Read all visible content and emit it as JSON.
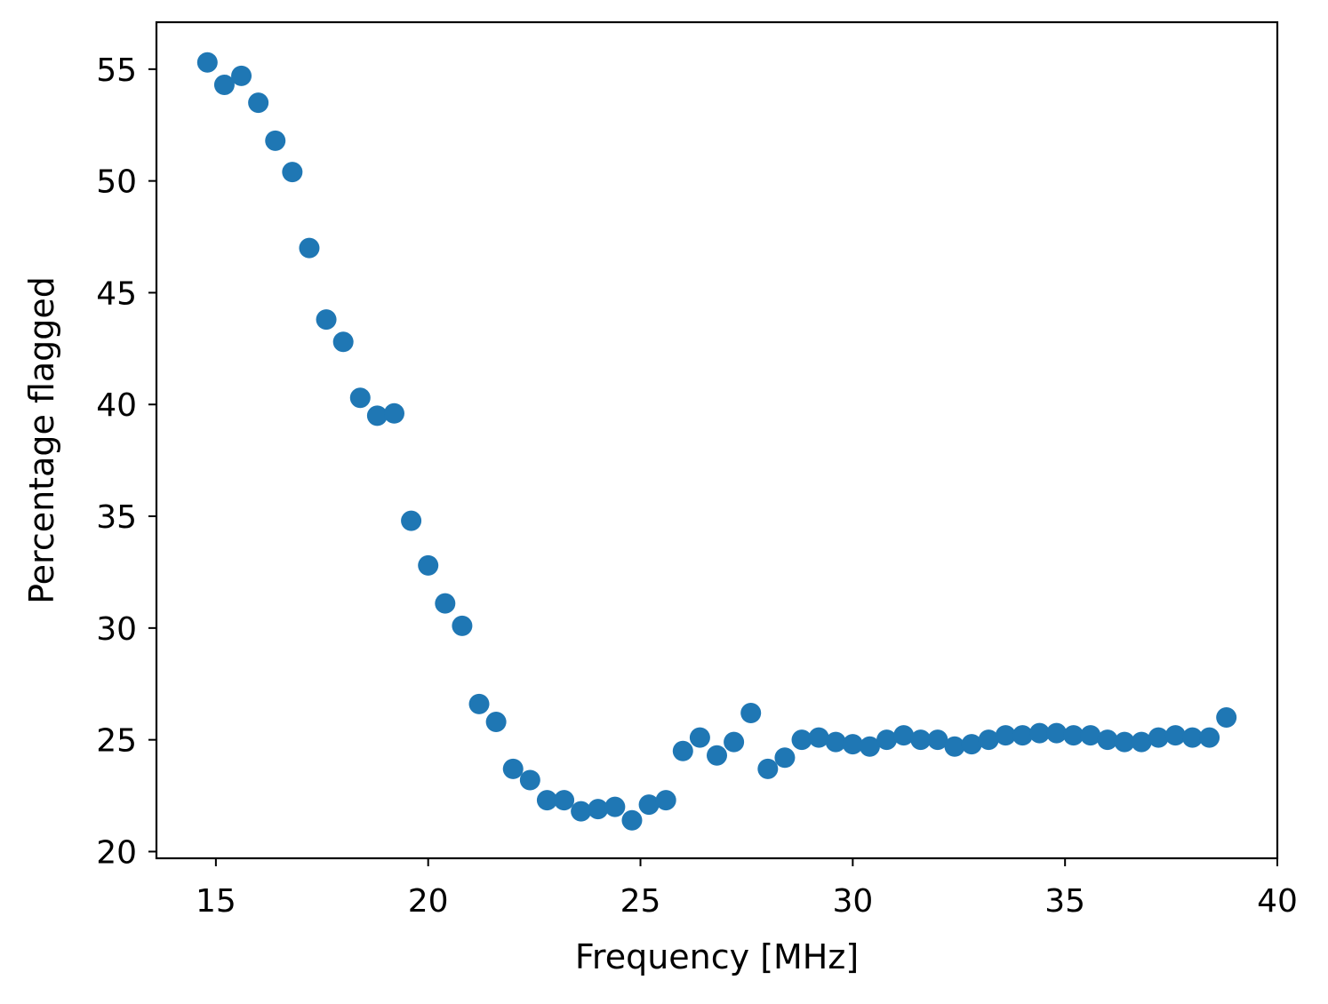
{
  "chart_data": {
    "type": "scatter",
    "title": "",
    "xlabel": "Frequency [MHz]",
    "ylabel": "Percentage flagged",
    "xlim": [
      13.6,
      40
    ],
    "ylim": [
      19.7,
      57.1
    ],
    "xticks": [
      15,
      20,
      25,
      30,
      35,
      40
    ],
    "yticks": [
      20,
      25,
      30,
      35,
      40,
      45,
      50,
      55
    ],
    "xtick_labels": [
      "15",
      "20",
      "25",
      "30",
      "35",
      "40"
    ],
    "ytick_labels": [
      "20",
      "25",
      "30",
      "35",
      "40",
      "45",
      "50",
      "55"
    ],
    "grid": false,
    "legend": false,
    "marker_color": "#1f77b4",
    "series": [
      {
        "x": [
          14.8,
          15.2,
          15.6,
          16.0,
          16.4,
          16.8,
          17.2,
          17.6,
          18.0,
          18.4,
          18.8,
          19.2,
          19.6,
          20.0,
          20.4,
          20.8,
          21.2,
          21.6,
          22.0,
          22.4,
          22.8,
          23.2,
          23.6,
          24.0,
          24.4,
          24.8,
          25.2,
          25.6,
          26.0,
          26.4,
          26.8,
          27.2,
          27.6,
          28.0,
          28.4,
          28.8,
          29.2,
          29.6,
          30.0,
          30.4,
          30.8,
          31.2,
          31.6,
          32.0,
          32.4,
          32.8,
          33.2,
          33.6,
          34.0,
          34.4,
          34.8,
          35.2,
          35.6,
          36.0,
          36.4,
          36.8,
          37.2,
          37.6,
          38.0,
          38.4,
          38.8
        ],
        "y": [
          55.3,
          54.3,
          54.7,
          53.5,
          51.8,
          50.4,
          47.0,
          43.8,
          42.8,
          40.3,
          39.5,
          39.6,
          34.8,
          32.8,
          31.1,
          30.1,
          26.6,
          25.8,
          23.7,
          23.2,
          22.3,
          22.3,
          21.8,
          21.9,
          22.0,
          21.4,
          22.1,
          22.3,
          24.5,
          25.1,
          24.3,
          24.9,
          26.2,
          23.7,
          24.2,
          25.0,
          25.1,
          24.9,
          24.8,
          24.7,
          25.0,
          25.2,
          25.0,
          25.0,
          24.7,
          24.8,
          25.0,
          25.2,
          25.2,
          25.3,
          25.3,
          25.2,
          25.2,
          25.0,
          24.9,
          24.9,
          25.1,
          25.2,
          25.1,
          25.1,
          26.0
        ]
      }
    ]
  }
}
